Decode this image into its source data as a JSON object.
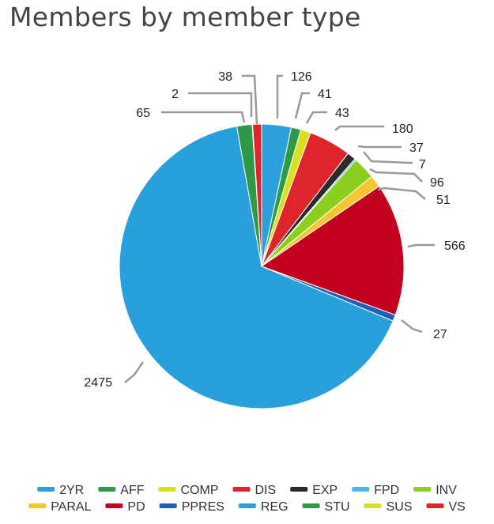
{
  "chart_data": {
    "type": "pie",
    "title": "Members by member type",
    "legend_position": "bottom",
    "slices": [
      {
        "label": "2YR",
        "value": 126,
        "color": "#2ca0dc"
      },
      {
        "label": "AFF",
        "value": 41,
        "color": "#2e9a48"
      },
      {
        "label": "COMP",
        "value": 43,
        "color": "#d9e021"
      },
      {
        "label": "DIS",
        "value": 180,
        "color": "#e0242c"
      },
      {
        "label": "EXP",
        "value": 37,
        "color": "#2b2b2b"
      },
      {
        "label": "FPD",
        "value": 7,
        "color": "#4ab8e8"
      },
      {
        "label": "INV",
        "value": 96,
        "color": "#8ccf1e"
      },
      {
        "label": "PARAL",
        "value": 51,
        "color": "#f6c62f"
      },
      {
        "label": "PD",
        "value": 566,
        "color": "#c4001f"
      },
      {
        "label": "PPRES",
        "value": 27,
        "color": "#1f5fb8"
      },
      {
        "label": "REG",
        "value": 2475,
        "color": "#27a0dc"
      },
      {
        "label": "STU",
        "value": 65,
        "color": "#2e9a48"
      },
      {
        "label": "SUS",
        "value": 2,
        "color": "#d9e021"
      },
      {
        "label": "VS",
        "value": 38,
        "color": "#e0242c"
      }
    ]
  }
}
